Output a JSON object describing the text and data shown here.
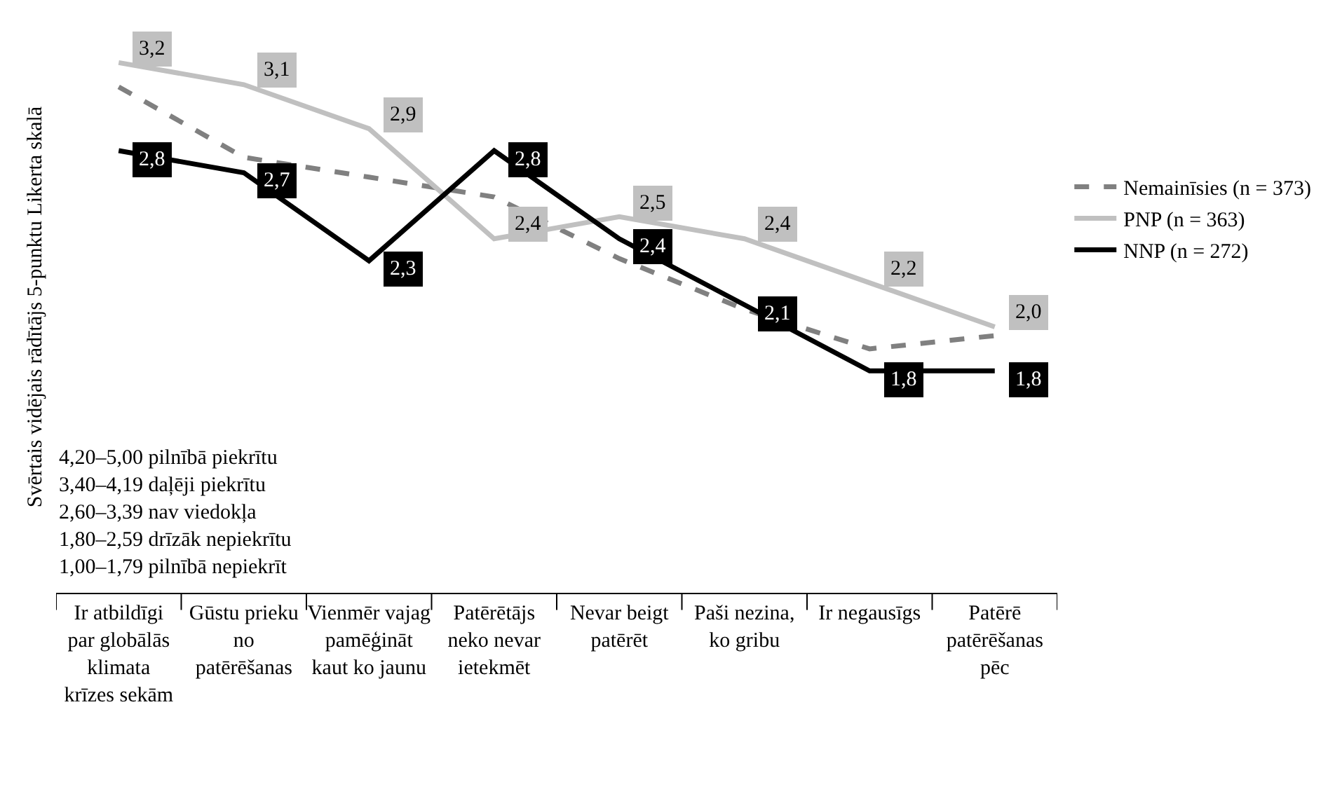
{
  "chart_data": {
    "type": "line",
    "ylabel": "Svērtais vidējais rādītājs 5-punktu Likerta skalā",
    "categories": [
      "Ir atbildīgi par globālās klimata krīzes sekām",
      "Gūstu prieku no patērēšanas",
      "Vienmēr vajag pamēģināt kaut ko jaunu",
      "Patērētājs neko nevar ietekmēt",
      "Nevar beigt patērēt",
      "Paši nezina, ko gribu",
      "Ir negausīgs",
      "Patērē patērēšanas pēc"
    ],
    "series": [
      {
        "name": "Nemainīsies (n = 373)",
        "color": "#808080",
        "line_style": "dashed",
        "values": [
          3.09,
          2.77,
          2.68,
          2.59,
          2.31,
          2.08,
          1.9,
          1.96
        ]
      },
      {
        "name": "PNP (n = 363)",
        "color": "#c0c0c0",
        "line_style": "solid",
        "values": [
          3.2,
          3.1,
          2.9,
          2.4,
          2.5,
          2.4,
          2.2,
          2.0
        ],
        "value_labels": [
          "3,2",
          "3,1",
          "2,9",
          "2,4",
          "2,5",
          "2,4",
          "2,2",
          "2,0"
        ]
      },
      {
        "name": "NNP (n = 272)",
        "color": "#000000",
        "line_style": "solid",
        "values": [
          2.8,
          2.7,
          2.3,
          2.8,
          2.4,
          2.1,
          1.8,
          1.8
        ],
        "value_labels": [
          "2,8",
          "2,7",
          "2,3",
          "2,8",
          "2,4",
          "2,1",
          "1,8",
          "1,8"
        ]
      }
    ],
    "annotations": [
      "4,20–5,00 pilnībā piekrītu",
      "3,40–4,19 daļēji piekrītu",
      "2,60–3,39 nav viedokļa",
      "1,80–2,59 drīzāk nepiekrītu",
      "1,00–1,79 pilnībā nepiekrīt"
    ],
    "legend": "right",
    "marker": "none"
  }
}
